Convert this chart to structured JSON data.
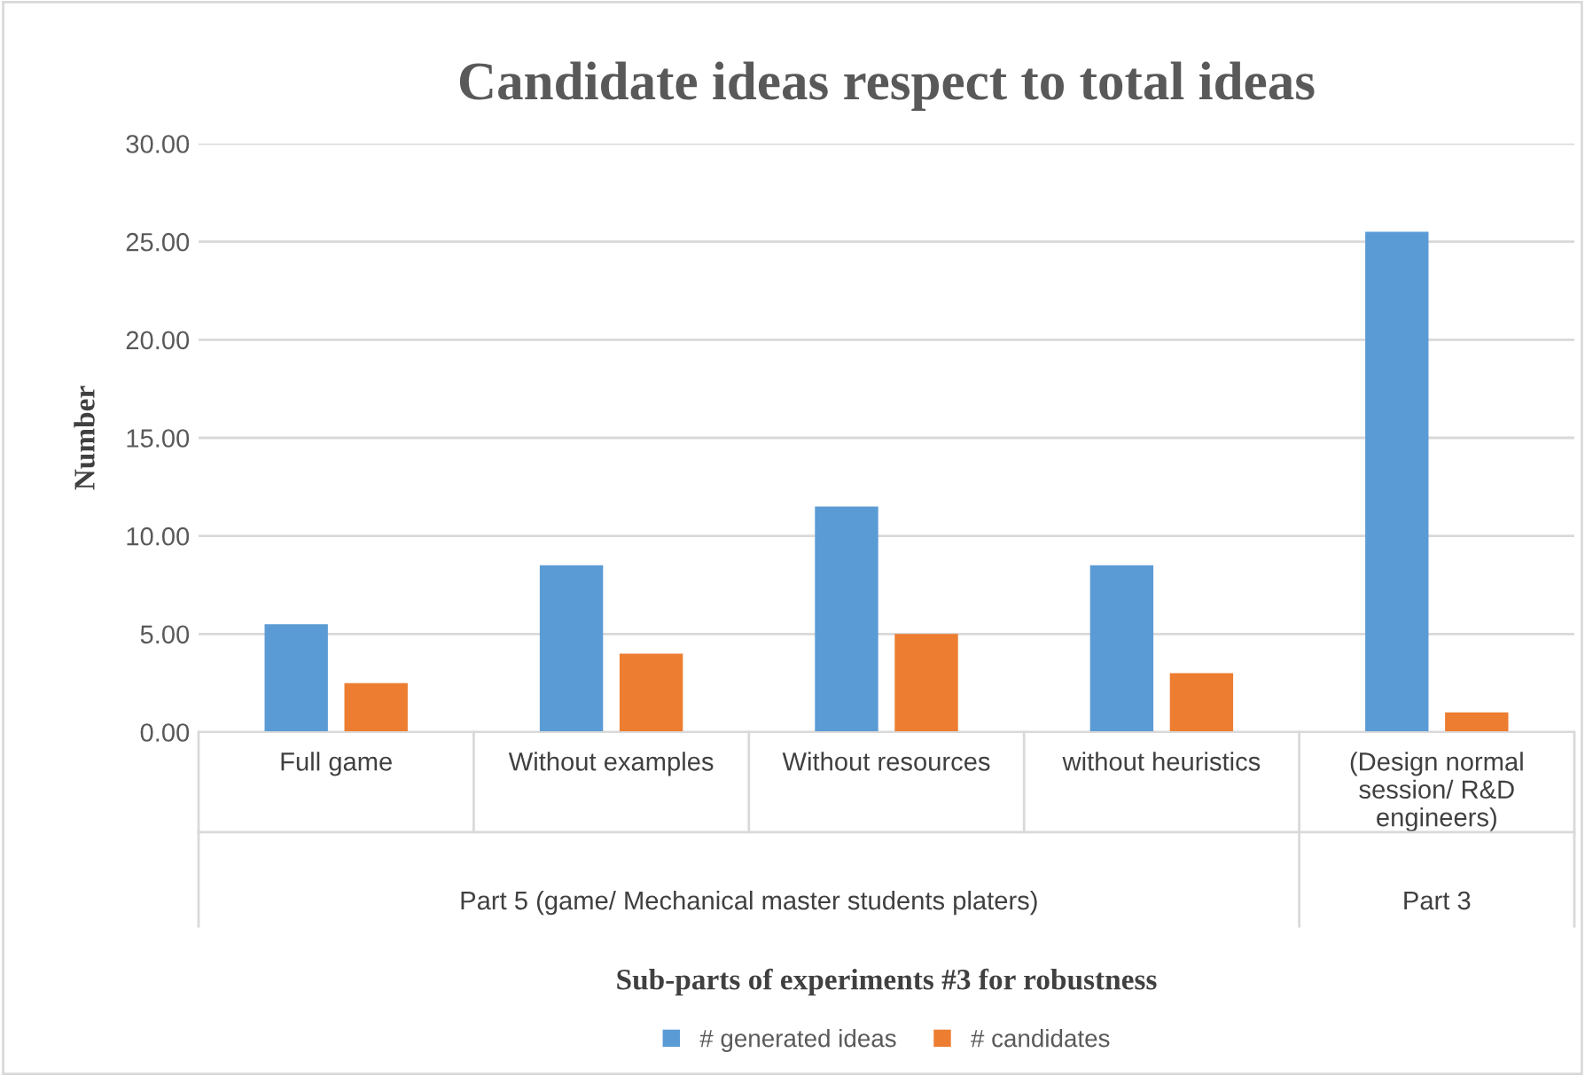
{
  "chart_data": {
    "type": "bar",
    "title": "Candidate ideas respect to total ideas",
    "xlabel": "Sub-parts of experiments #3 for robustness",
    "ylabel": "Number",
    "categories": [
      "Full game",
      "Without examples",
      "Without resources",
      "without heuristics",
      "(Design normal\nsession/ R&D\nengineers)"
    ],
    "series": [
      {
        "name": "# generated ideas",
        "color": "#5b9bd5",
        "values": [
          5.5,
          8.5,
          11.5,
          8.5,
          25.5
        ]
      },
      {
        "name": "# candidates",
        "color": "#ed7d31",
        "values": [
          2.5,
          4.0,
          5.0,
          3.0,
          1.0
        ]
      }
    ],
    "ylim": [
      0,
      30
    ],
    "yticks": [
      {
        "value": 0,
        "label": "0.00"
      },
      {
        "value": 5,
        "label": "5.00"
      },
      {
        "value": 10,
        "label": "10.00"
      },
      {
        "value": 15,
        "label": "15.00"
      },
      {
        "value": 20,
        "label": "20.00"
      },
      {
        "value": 25,
        "label": "25.00"
      },
      {
        "value": 30,
        "label": "30.00"
      }
    ],
    "grid": "y",
    "legend": "bottom",
    "annotations": [
      "Part 5 (game/ Mechanical master students platers)",
      "Part 3"
    ]
  }
}
